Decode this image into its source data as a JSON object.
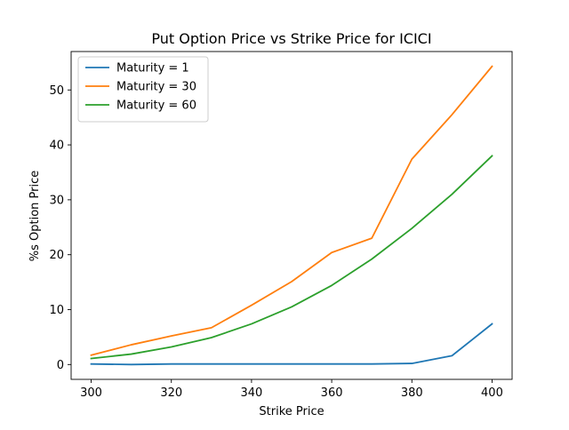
{
  "chart_data": {
    "type": "line",
    "title": "Put Option Price vs Strike Price for ICICI",
    "xlabel": "Strike Price",
    "ylabel": "%s Option Price",
    "x": [
      300,
      310,
      320,
      330,
      340,
      350,
      360,
      370,
      380,
      390,
      400
    ],
    "xlim": [
      295,
      405
    ],
    "ylim": [
      -2.7,
      57.0
    ],
    "xticks": [
      300,
      320,
      340,
      360,
      380,
      400
    ],
    "yticks": [
      0,
      10,
      20,
      30,
      40,
      50
    ],
    "grid": false,
    "legend_position": "top-left",
    "series": [
      {
        "name": "Maturity = 1",
        "color": "#1f77b4",
        "values": [
          0.1,
          0.0,
          0.1,
          0.1,
          0.1,
          0.1,
          0.1,
          0.1,
          0.2,
          1.6,
          7.4
        ]
      },
      {
        "name": "Maturity = 30",
        "color": "#ff7f0e",
        "values": [
          1.7,
          3.6,
          5.2,
          6.7,
          10.8,
          15.1,
          20.4,
          23.0,
          37.4,
          45.5,
          54.3
        ]
      },
      {
        "name": "Maturity = 60",
        "color": "#2ca02c",
        "values": [
          1.1,
          1.9,
          3.2,
          4.9,
          7.4,
          10.5,
          14.4,
          19.2,
          24.8,
          31.0,
          38.0
        ]
      }
    ]
  }
}
